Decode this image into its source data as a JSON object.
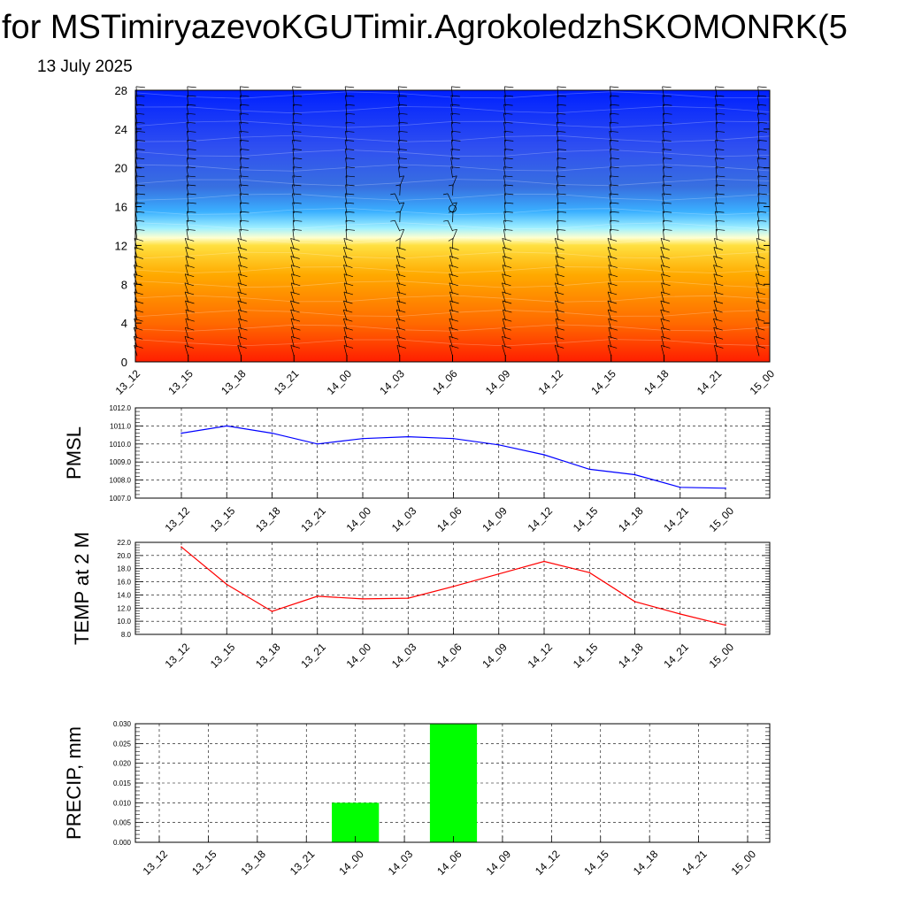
{
  "header": {
    "title": "for MSTimiryazevoKGUTimir.AgrokoledzhSKOMONRK(5",
    "date": "13 July 2025"
  },
  "time_labels": [
    "13_12",
    "13_15",
    "13_18",
    "13_21",
    "14_00",
    "14_03",
    "14_06",
    "14_09",
    "14_12",
    "14_15",
    "14_18",
    "14_21",
    "15_00"
  ],
  "chart_data": [
    {
      "type": "heatmap",
      "ylim": [
        0,
        28
      ],
      "yticks": [
        "0",
        "4",
        "8",
        "12",
        "16",
        "20",
        "24",
        "28"
      ],
      "categories": [
        "13_12",
        "13_15",
        "13_18",
        "13_21",
        "14_00",
        "14_03",
        "14_06",
        "14_09",
        "14_12",
        "14_15",
        "14_18",
        "14_21",
        "15_00"
      ],
      "color_stops": [
        {
          "level": 0,
          "color": "#ff1e00"
        },
        {
          "level": 4,
          "color": "#ff6a00"
        },
        {
          "level": 9,
          "color": "#ffaa00"
        },
        {
          "level": 12,
          "color": "#ffe040"
        },
        {
          "level": 12.8,
          "color": "#ffffd0"
        },
        {
          "level": 13.8,
          "color": "#a0f0ff"
        },
        {
          "level": 15.5,
          "color": "#3ab0ff"
        },
        {
          "level": 18,
          "color": "#3870e0"
        },
        {
          "level": 22,
          "color": "#3050f0"
        },
        {
          "level": 28,
          "color": "#0020ff"
        }
      ]
    },
    {
      "type": "line",
      "ylabel": "PMSL",
      "categories": [
        "13_12",
        "13_15",
        "13_18",
        "13_21",
        "14_00",
        "14_03",
        "14_06",
        "14_09",
        "14_12",
        "14_15",
        "14_18",
        "14_21",
        "15_00"
      ],
      "values": [
        1010.6,
        1011.0,
        1010.6,
        1010.0,
        1010.3,
        1010.4,
        1010.3,
        1009.95,
        1009.4,
        1008.6,
        1008.3,
        1007.6,
        1007.55
      ],
      "ylim": [
        1007.0,
        1012.0
      ],
      "yticks": [
        "1007.0",
        "1008.0",
        "1009.0",
        "1010.0",
        "1011.0",
        "1012.0"
      ],
      "color": "#0000ff",
      "grid": true
    },
    {
      "type": "line",
      "ylabel": "TEMP at 2 M",
      "categories": [
        "13_12",
        "13_15",
        "13_18",
        "13_21",
        "14_00",
        "14_03",
        "14_06",
        "14_09",
        "14_12",
        "14_15",
        "14_18",
        "14_21",
        "15_00"
      ],
      "values": [
        21.3,
        15.6,
        11.5,
        13.8,
        13.4,
        13.5,
        15.3,
        17.2,
        19.1,
        17.4,
        13.0,
        11.1,
        9.4
      ],
      "ylim": [
        8.0,
        22.0
      ],
      "yticks": [
        "8.0",
        "10.0",
        "12.0",
        "14.0",
        "16.0",
        "18.0",
        "20.0",
        "22.0"
      ],
      "color": "#ff0000",
      "grid": true
    },
    {
      "type": "bar",
      "ylabel": "PRECIP, mm",
      "categories": [
        "13_12",
        "13_15",
        "13_18",
        "13_21",
        "14_00",
        "14_03",
        "14_06",
        "14_09",
        "14_12",
        "14_15",
        "14_18",
        "14_21",
        "15_00"
      ],
      "values": [
        0,
        0,
        0,
        0,
        0.01,
        0,
        0.03,
        0,
        0,
        0,
        0,
        0,
        0
      ],
      "ylim": [
        0,
        0.03
      ],
      "yticks": [
        "0.000",
        "0.005",
        "0.010",
        "0.015",
        "0.020",
        "0.025",
        "0.030"
      ],
      "color": "#00ff00",
      "grid": true
    }
  ]
}
